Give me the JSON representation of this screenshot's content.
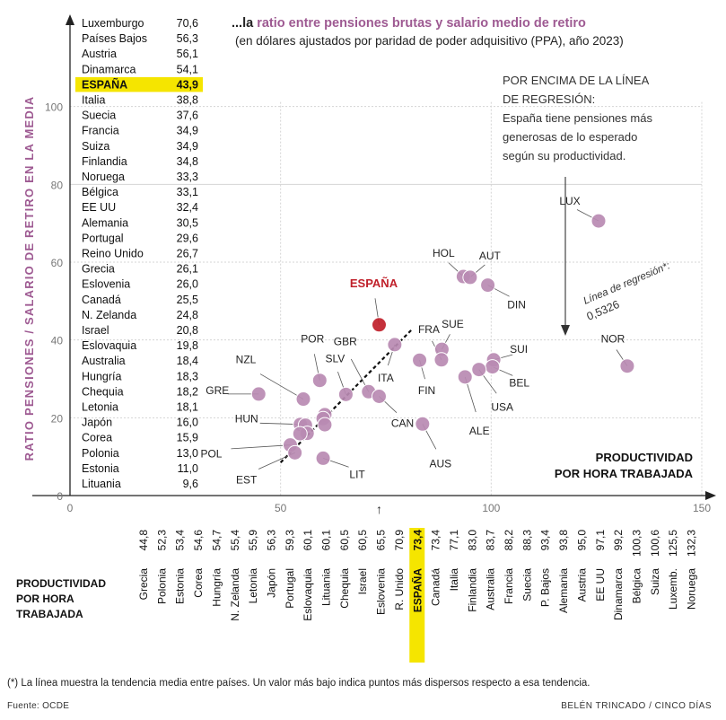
{
  "header": {
    "prefix": "...la ",
    "highlight": "ratio entre pensiones brutas y salario medio de retiro",
    "subtitle": "(en dólares ajustados por paridad de poder adquisitivo (PPA), año 2023)"
  },
  "annotation": [
    "POR ENCIMA DE LA LÍNEA",
    "DE REGRESIÓN:",
    "España tiene pensiones más",
    "generosas de lo esperado",
    "según su productividad."
  ],
  "regression_label": [
    "Línea de regresión*:",
    "0,5326"
  ],
  "footnote": "(*) La línea muestra la tendencia media entre países. Un valor más bajo indica puntos más dispersos respecto a esa tendencia.",
  "source": "Fuente: OCDE",
  "credit": "BELÉN TRINCADO / CINCO DÍAS",
  "colors": {
    "accent": "#9e5a92",
    "point": "#b98ab2",
    "spain_point": "#c0202a",
    "highlight": "#f5e500",
    "grid": "#d4d4d4"
  },
  "chart_data": {
    "type": "scatter",
    "xlabel": "PRODUCTIVIDAD POR HORA TRABAJADA",
    "ylabel": "RATIO PENSIONES / SALARIO DE RETIRO EN LA MEDIA",
    "xlim": [
      0,
      150
    ],
    "ylim": [
      0,
      120
    ],
    "xticks": [
      0,
      50,
      100,
      150
    ],
    "yticks": [
      0,
      20,
      40,
      60,
      80,
      100
    ],
    "x_marker": 73.4,
    "x_marker_glyph": "↑",
    "regression_slope": 0.5326,
    "grid": true,
    "ratio_table": [
      {
        "country": "Luxemburgo",
        "value": "70,6"
      },
      {
        "country": "Países Bajos",
        "value": "56,3"
      },
      {
        "country": "Austria",
        "value": "56,1"
      },
      {
        "country": "Dinamarca",
        "value": "54,1"
      },
      {
        "country": "ESPAÑA",
        "value": "43,9",
        "highlight": true
      },
      {
        "country": "Italia",
        "value": "38,8"
      },
      {
        "country": "Suecia",
        "value": "37,6"
      },
      {
        "country": "Francia",
        "value": "34,9"
      },
      {
        "country": "Suiza",
        "value": "34,9"
      },
      {
        "country": "Finlandia",
        "value": "34,8"
      },
      {
        "country": "Noruega",
        "value": "33,3"
      },
      {
        "country": "Bélgica",
        "value": "33,1"
      },
      {
        "country": "EE UU",
        "value": "32,4"
      },
      {
        "country": "Alemania",
        "value": "30,5"
      },
      {
        "country": "Portugal",
        "value": "29,6"
      },
      {
        "country": "Reino Unido",
        "value": "26,7"
      },
      {
        "country": "Grecia",
        "value": "26,1"
      },
      {
        "country": "Eslovenia",
        "value": "26,0"
      },
      {
        "country": "Canadá",
        "value": "25,5"
      },
      {
        "country": "N. Zelanda",
        "value": "24,8"
      },
      {
        "country": "Israel",
        "value": "20,8"
      },
      {
        "country": "Eslovaquia",
        "value": "19,8"
      },
      {
        "country": "Australia",
        "value": "18,4"
      },
      {
        "country": "Hungría",
        "value": "18,3"
      },
      {
        "country": "Chequia",
        "value": "18,2"
      },
      {
        "country": "Letonia",
        "value": "18,1"
      },
      {
        "country": "Japón",
        "value": "16,0"
      },
      {
        "country": "Corea",
        "value": "15,9"
      },
      {
        "country": "Polonia",
        "value": "13,0"
      },
      {
        "country": "Estonia",
        "value": "11,0"
      },
      {
        "country": "Lituania",
        "value": "9,6"
      }
    ],
    "productivity_table": [
      {
        "country": "Grecia",
        "value": "44,8"
      },
      {
        "country": "Polonia",
        "value": "52,3"
      },
      {
        "country": "Estonia",
        "value": "53,4"
      },
      {
        "country": "Corea",
        "value": "54,6"
      },
      {
        "country": "Hungría",
        "value": "54,7"
      },
      {
        "country": "N. Zelanda",
        "value": "55,4"
      },
      {
        "country": "Letonia",
        "value": "55,9"
      },
      {
        "country": "Japón",
        "value": "56,3"
      },
      {
        "country": "Portugal",
        "value": "59,3"
      },
      {
        "country": "Eslovaquia",
        "value": "60,1"
      },
      {
        "country": "Lituania",
        "value": "60,1"
      },
      {
        "country": "Chequia",
        "value": "60,5"
      },
      {
        "country": "Israel",
        "value": "60,5"
      },
      {
        "country": "Eslovenia",
        "value": "65,5"
      },
      {
        "country": "R. Unido",
        "value": "70,9"
      },
      {
        "country": "ESPAÑA",
        "value": "73,4",
        "highlight": true
      },
      {
        "country": "Canadá",
        "value": "73,4"
      },
      {
        "country": "Italia",
        "value": "77,1"
      },
      {
        "country": "Finlandia",
        "value": "83,0"
      },
      {
        "country": "Australia",
        "value": "83,7"
      },
      {
        "country": "Francia",
        "value": "88,2"
      },
      {
        "country": "Suecia",
        "value": "88,3"
      },
      {
        "country": "P. Bajos",
        "value": "93,4"
      },
      {
        "country": "Alemania",
        "value": "93,8"
      },
      {
        "country": "Austria",
        "value": "95,0"
      },
      {
        "country": "EE UU",
        "value": "97,1"
      },
      {
        "country": "Dinamarca",
        "value": "99,2"
      },
      {
        "country": "Bélgica",
        "value": "100,3"
      },
      {
        "country": "Suiza",
        "value": "100,6"
      },
      {
        "country": "Luxemb.",
        "value": "125,5"
      },
      {
        "country": "Noruega",
        "value": "132,3"
      }
    ],
    "points": [
      {
        "label": "LUX",
        "x": 125.5,
        "y": 70.6
      },
      {
        "label": "NOR",
        "x": 132.3,
        "y": 33.3
      },
      {
        "label": "HOL",
        "x": 93.4,
        "y": 56.3
      },
      {
        "label": "AUT",
        "x": 95.0,
        "y": 56.1
      },
      {
        "label": "DIN",
        "x": 99.2,
        "y": 54.1
      },
      {
        "label": "ESPAÑA",
        "x": 73.4,
        "y": 43.9,
        "highlight": true
      },
      {
        "label": "ITA",
        "x": 77.1,
        "y": 38.8
      },
      {
        "label": "SUE",
        "x": 88.3,
        "y": 37.6
      },
      {
        "label": "FRA",
        "x": 88.2,
        "y": 34.9
      },
      {
        "label": "SUI",
        "x": 100.6,
        "y": 34.9
      },
      {
        "label": "FIN",
        "x": 83.0,
        "y": 34.8
      },
      {
        "label": "BEL",
        "x": 100.3,
        "y": 33.1
      },
      {
        "label": "USA",
        "x": 97.1,
        "y": 32.4
      },
      {
        "label": "ALE",
        "x": 93.8,
        "y": 30.5
      },
      {
        "label": "POR",
        "x": 59.3,
        "y": 29.6
      },
      {
        "label": "GBR",
        "x": 70.9,
        "y": 26.7
      },
      {
        "label": "GRE",
        "x": 44.8,
        "y": 26.1
      },
      {
        "label": "SLV",
        "x": 65.5,
        "y": 26.0
      },
      {
        "label": "CAN",
        "x": 73.4,
        "y": 25.5
      },
      {
        "label": "NZL",
        "x": 55.4,
        "y": 24.8
      },
      {
        "label": "",
        "x": 60.5,
        "y": 20.8
      },
      {
        "label": "",
        "x": 60.1,
        "y": 19.8
      },
      {
        "label": "AUS",
        "x": 83.7,
        "y": 18.4
      },
      {
        "label": "HUN",
        "x": 54.7,
        "y": 18.3
      },
      {
        "label": "",
        "x": 60.5,
        "y": 18.2
      },
      {
        "label": "",
        "x": 55.9,
        "y": 18.1
      },
      {
        "label": "",
        "x": 56.3,
        "y": 16.0
      },
      {
        "label": "",
        "x": 54.6,
        "y": 15.9
      },
      {
        "label": "POL",
        "x": 52.3,
        "y": 13.0
      },
      {
        "label": "EST",
        "x": 53.4,
        "y": 11.0
      },
      {
        "label": "LIT",
        "x": 60.1,
        "y": 9.6
      }
    ]
  }
}
